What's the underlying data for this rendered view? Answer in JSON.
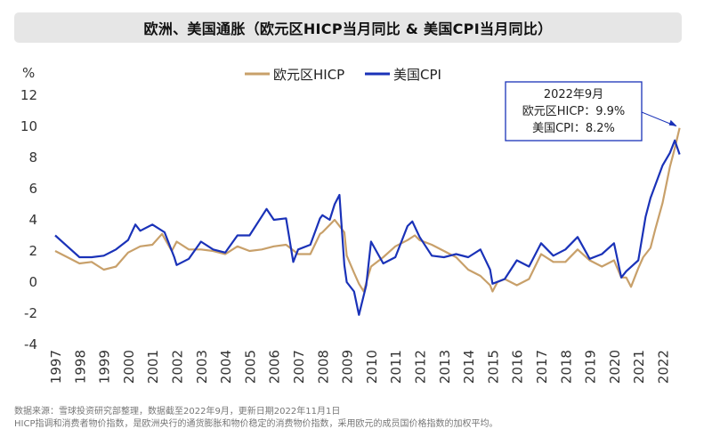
{
  "title": "欧洲、美国通胀（欧元区HICP当月同比 & 美国CPI当月同比）",
  "footer": {
    "source": "数据来源：雪球投资研究部整理，数据截至2022年9月，更新日期2022年11月1日",
    "note": "HICP指调和消费者物价指数，是欧洲央行的通货膨胀和物价稳定的消费物价指数，采用欧元的成员国价格指数的加权平均。"
  },
  "chart_data": {
    "type": "line",
    "ylabel": "%",
    "ylim": [
      -4,
      12
    ],
    "yticks": [
      "-4",
      "-2",
      "0",
      "2",
      "4",
      "6",
      "8",
      "10",
      "12"
    ],
    "xlim": [
      1997.0,
      2022.75
    ],
    "xticks": [
      "1997",
      "1998",
      "1999",
      "2000",
      "2001",
      "2002",
      "2003",
      "2004",
      "2005",
      "2006",
      "2007",
      "2008",
      "2009",
      "2010",
      "2011",
      "2012",
      "2013",
      "2014",
      "2015",
      "2016",
      "2017",
      "2018",
      "2019",
      "2020",
      "2021",
      "2022"
    ],
    "grid": false,
    "legend": "top-center",
    "series": [
      {
        "name": "欧元区HICP",
        "color": "#c8a06a",
        "x": [
          1997.0,
          1997.5,
          1998.0,
          1998.5,
          1999.0,
          1999.5,
          2000.0,
          2000.5,
          2001.0,
          2001.4,
          2001.8,
          2002.0,
          2002.5,
          2003.0,
          2003.5,
          2004.0,
          2004.5,
          2005.0,
          2005.5,
          2006.0,
          2006.5,
          2007.0,
          2007.5,
          2007.9,
          2008.0,
          2008.5,
          2008.9,
          2009.0,
          2009.3,
          2009.5,
          2009.7,
          2009.9,
          2010.0,
          2010.5,
          2011.0,
          2011.5,
          2011.8,
          2012.0,
          2012.5,
          2013.0,
          2013.5,
          2014.0,
          2014.5,
          2014.9,
          2015.0,
          2015.2,
          2015.5,
          2016.0,
          2016.5,
          2017.0,
          2017.5,
          2018.0,
          2018.5,
          2019.0,
          2019.5,
          2020.0,
          2020.3,
          2020.5,
          2020.7,
          2021.0,
          2021.2,
          2021.5,
          2021.7,
          2022.0,
          2022.3,
          2022.5,
          2022.7
        ],
        "y": [
          2.0,
          1.6,
          1.2,
          1.3,
          0.8,
          1.0,
          1.9,
          2.3,
          2.4,
          3.1,
          2.0,
          2.6,
          2.1,
          2.1,
          2.0,
          1.8,
          2.3,
          2.0,
          2.1,
          2.3,
          2.4,
          1.8,
          1.8,
          3.1,
          3.2,
          4.0,
          3.2,
          1.7,
          0.6,
          -0.1,
          -0.6,
          0.5,
          1.0,
          1.6,
          2.3,
          2.7,
          3.0,
          2.7,
          2.4,
          2.0,
          1.6,
          0.8,
          0.4,
          -0.2,
          -0.6,
          0.0,
          0.2,
          -0.2,
          0.2,
          1.8,
          1.3,
          1.3,
          2.1,
          1.4,
          1.0,
          1.4,
          0.3,
          0.3,
          -0.3,
          0.9,
          1.6,
          2.2,
          3.4,
          5.1,
          7.4,
          8.6,
          9.9
        ]
      },
      {
        "name": "美国CPI",
        "color": "#1a32b8",
        "x": [
          1997.0,
          1997.5,
          1998.0,
          1998.5,
          1999.0,
          1999.5,
          2000.0,
          2000.3,
          2000.5,
          2001.0,
          2001.5,
          2001.9,
          2002.0,
          2002.5,
          2003.0,
          2003.5,
          2004.0,
          2004.5,
          2005.0,
          2005.7,
          2006.0,
          2006.5,
          2006.8,
          2007.0,
          2007.5,
          2007.9,
          2008.0,
          2008.3,
          2008.5,
          2008.7,
          2008.9,
          2009.0,
          2009.3,
          2009.5,
          2009.8,
          2010.0,
          2010.5,
          2011.0,
          2011.5,
          2011.7,
          2012.0,
          2012.5,
          2013.0,
          2013.5,
          2014.0,
          2014.5,
          2014.9,
          2015.0,
          2015.5,
          2016.0,
          2016.5,
          2017.0,
          2017.5,
          2018.0,
          2018.5,
          2019.0,
          2019.5,
          2020.0,
          2020.3,
          2020.5,
          2021.0,
          2021.3,
          2021.5,
          2022.0,
          2022.3,
          2022.5,
          2022.7
        ],
        "y": [
          3.0,
          2.3,
          1.6,
          1.6,
          1.7,
          2.1,
          2.7,
          3.7,
          3.3,
          3.7,
          3.2,
          1.6,
          1.1,
          1.5,
          2.6,
          2.1,
          1.9,
          3.0,
          3.0,
          4.7,
          4.0,
          4.1,
          1.3,
          2.1,
          2.4,
          4.1,
          4.3,
          4.0,
          5.0,
          5.6,
          1.1,
          0.0,
          -0.6,
          -2.1,
          -0.2,
          2.6,
          1.2,
          1.6,
          3.6,
          3.9,
          2.9,
          1.7,
          1.6,
          1.8,
          1.6,
          2.1,
          0.8,
          -0.1,
          0.2,
          1.4,
          1.0,
          2.5,
          1.7,
          2.1,
          2.9,
          1.5,
          1.8,
          2.5,
          0.3,
          0.7,
          1.4,
          4.2,
          5.4,
          7.5,
          8.3,
          9.1,
          8.2
        ]
      }
    ],
    "annotation": {
      "lines": [
        "2022年9月",
        "欧元区HICP：9.9%",
        "美国CPI：8.2%"
      ],
      "target_x": 2022.7,
      "target_y": 9.9
    }
  }
}
